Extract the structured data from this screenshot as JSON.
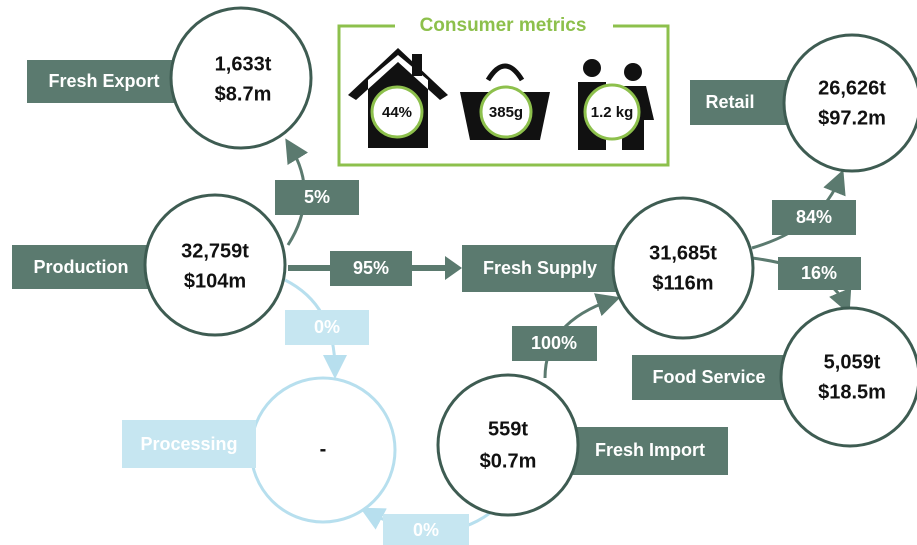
{
  "consumer_metrics": {
    "title": "Consumer metrics",
    "items": [
      "44%",
      "385g",
      "1.2 kg"
    ]
  },
  "nodes": {
    "fresh_export": {
      "label": "Fresh Export",
      "volume": "1,633t",
      "value": "$8.7m"
    },
    "production": {
      "label": "Production",
      "volume": "32,759t",
      "value": "$104m"
    },
    "fresh_supply": {
      "label": "Fresh Supply",
      "volume": "31,685t",
      "value": "$116m"
    },
    "retail": {
      "label": "Retail",
      "volume": "26,626t",
      "value": "$97.2m"
    },
    "food_service": {
      "label": "Food Service",
      "volume": "5,059t",
      "value": "$18.5m"
    },
    "fresh_import": {
      "label": "Fresh Import",
      "volume": "559t",
      "value": "$0.7m"
    },
    "processing": {
      "label": "Processing",
      "value": "-"
    }
  },
  "flows": {
    "production_to_fresh_export": "5%",
    "production_to_fresh_supply": "95%",
    "production_to_processing": "0%",
    "fresh_import_to_fresh_supply": "100%",
    "fresh_supply_to_retail": "84%",
    "fresh_supply_to_food_service": "16%",
    "fresh_import_to_processing": "0%"
  }
}
